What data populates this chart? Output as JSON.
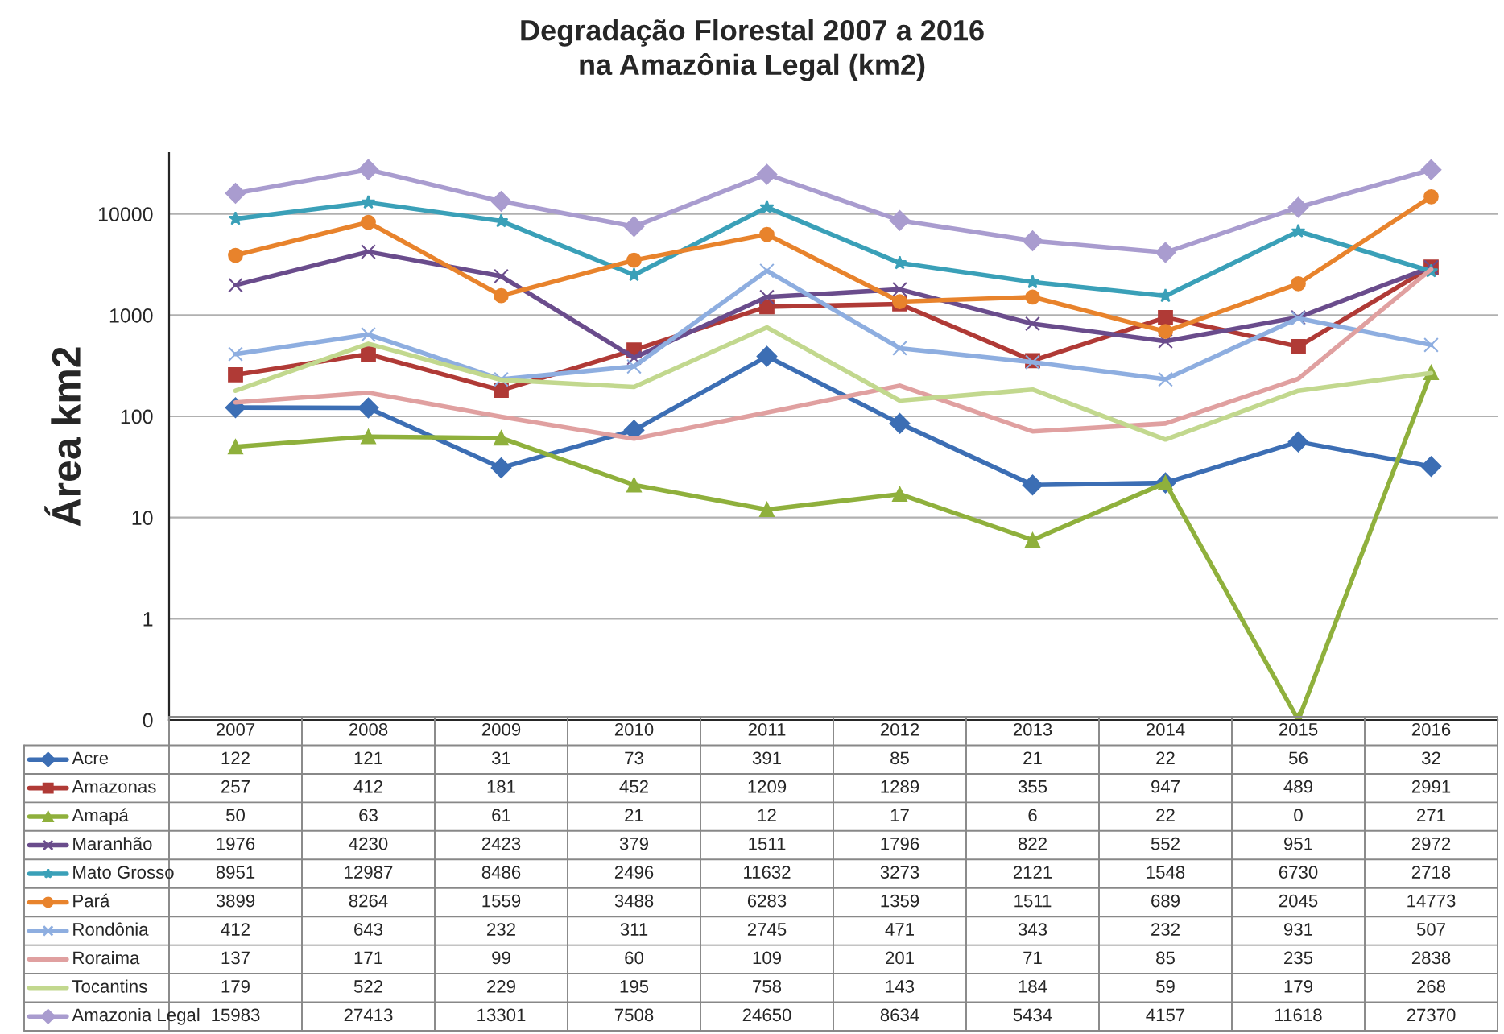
{
  "chart_data": {
    "type": "line",
    "title": "Degradação Florestal 2007 a 2016\nna Amazônia Legal (km2)",
    "ylabel": "Área km2",
    "log": "y",
    "ylim": [
      0.1,
      40000
    ],
    "yticks": [
      {
        "value": 0.1,
        "label": "0"
      },
      1,
      10,
      100,
      1000,
      10000
    ],
    "grid": "y",
    "legend": "bottom left",
    "categories": [
      "2007",
      "2008",
      "2009",
      "2010",
      "2011",
      "2012",
      "2013",
      "2014",
      "2015",
      "2016"
    ],
    "series": [
      {
        "name": "Acre",
        "color": "#3c6eb4",
        "marker": "diamond",
        "values": [
          122,
          121,
          31,
          73,
          391,
          85,
          21,
          22,
          56,
          32
        ],
        "value_labels": [
          "122",
          "121",
          "31",
          "73",
          "391",
          "85",
          "21",
          "22",
          "56",
          "32"
        ]
      },
      {
        "name": "Amazonas",
        "color": "#b03a36",
        "marker": "square",
        "values": [
          257,
          412,
          181,
          452,
          1209,
          1289,
          355,
          947,
          489,
          2991
        ],
        "value_labels": [
          "257",
          "412",
          "181",
          "452",
          "1209",
          "1289",
          "355",
          "947",
          "489",
          "2991"
        ]
      },
      {
        "name": "Amapá",
        "color": "#8fb03c",
        "marker": "triangle",
        "values": [
          50,
          63,
          61,
          21,
          12,
          17,
          6,
          22,
          0.1,
          271
        ],
        "value_labels": [
          "50",
          "63",
          "61",
          "21",
          "12",
          "17",
          "6",
          "22",
          "0",
          "271"
        ]
      },
      {
        "name": "Maranhão",
        "color": "#6a4c8c",
        "marker": "cross",
        "values": [
          1976,
          4230,
          2423,
          379,
          1511,
          1796,
          822,
          552,
          951,
          2972
        ],
        "value_labels": [
          "1976",
          "4230",
          "2423",
          "379",
          "1511",
          "1796",
          "822",
          "552",
          "951",
          "2972"
        ]
      },
      {
        "name": "Mato Grosso",
        "color": "#3aa0b8",
        "marker": "star",
        "values": [
          8951,
          12987,
          8486,
          2496,
          11632,
          3273,
          2121,
          1548,
          6730,
          2718
        ],
        "value_labels": [
          "8951",
          "12987",
          "8486",
          "2496",
          "11632",
          "3273",
          "2121",
          "1548",
          "6730",
          "2718"
        ]
      },
      {
        "name": "Pará",
        "color": "#e8832c",
        "marker": "circle",
        "values": [
          3899,
          8264,
          1559,
          3488,
          6283,
          1359,
          1511,
          689,
          2045,
          14773
        ],
        "value_labels": [
          "3899",
          "8264",
          "1559",
          "3488",
          "6283",
          "1359",
          "1511",
          "689",
          "2045",
          "14773"
        ]
      },
      {
        "name": "Rondônia",
        "color": "#8eaee0",
        "marker": "cross",
        "values": [
          412,
          643,
          232,
          311,
          2745,
          471,
          343,
          232,
          931,
          507
        ],
        "value_labels": [
          "412",
          "643",
          "232",
          "311",
          "2745",
          "471",
          "343",
          "232",
          "931",
          "507"
        ]
      },
      {
        "name": "Roraima",
        "color": "#e0a0a0",
        "marker": "none",
        "values": [
          137,
          171,
          99,
          60,
          109,
          201,
          71,
          85,
          235,
          2838
        ],
        "value_labels": [
          "137",
          "171",
          "99",
          "60",
          "109",
          "201",
          "71",
          "85",
          "235",
          "2838"
        ]
      },
      {
        "name": "Tocantins",
        "color": "#c2d88e",
        "marker": "none",
        "values": [
          179,
          522,
          229,
          195,
          758,
          143,
          184,
          59,
          179,
          268
        ],
        "value_labels": [
          "179",
          "522",
          "229",
          "195",
          "758",
          "143",
          "184",
          "59",
          "179",
          "268"
        ]
      },
      {
        "name": "Amazonia Legal",
        "color": "#a99ccf",
        "marker": "diamond",
        "values": [
          15983,
          27413,
          13301,
          7508,
          24650,
          8634,
          5434,
          4157,
          11618,
          27370
        ],
        "value_labels": [
          "15983",
          "27413",
          "13301",
          "7508",
          "24650",
          "8634",
          "5434",
          "4157",
          "11618",
          "27370"
        ]
      }
    ]
  }
}
